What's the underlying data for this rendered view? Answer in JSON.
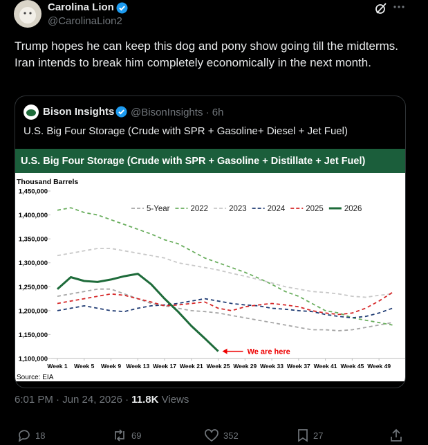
{
  "tweet": {
    "author": "Carolina Lion",
    "handle": "@CarolinaLion2",
    "text": "Trump hopes he can keep this dog and pony show going till the midterms. Iran intends to break him completely economically in the next month.",
    "timestamp": "6:01 PM · Jun 24, 2026 ·",
    "views": "11.8K",
    "views_label": "Views",
    "replies": 18,
    "reposts": 69,
    "likes": 352,
    "bookmarks": 27
  },
  "quote": {
    "author": "Bison Insights",
    "meta": "@BisonInsights · 6h",
    "text": "U.S. Big Four Storage (Crude with SPR + Gasoline+ Diesel + Jet Fuel)"
  },
  "chart_data": {
    "type": "line",
    "title": "U.S. Big Four Storage (Crude with SPR + Gasoline + Distillate + Jet Fuel)",
    "y_label": "Thousand Barrels",
    "source": "Source: EIA",
    "annotation": "We are here",
    "x": [
      1,
      3,
      5,
      7,
      9,
      11,
      13,
      15,
      17,
      19,
      21,
      23,
      25,
      27,
      29,
      31,
      33,
      35,
      37,
      39,
      41,
      43,
      45,
      47,
      49,
      51
    ],
    "xlim": [
      0,
      53
    ],
    "xticks": [
      {
        "value": 1,
        "label": "Week 1"
      },
      {
        "value": 5,
        "label": "Week 5"
      },
      {
        "value": 9,
        "label": "Week 9"
      },
      {
        "value": 13,
        "label": "Week 13"
      },
      {
        "value": 17,
        "label": "Week 17"
      },
      {
        "value": 21,
        "label": "Week 21"
      },
      {
        "value": 25,
        "label": "Week 25"
      },
      {
        "value": 29,
        "label": "Week 29"
      },
      {
        "value": 33,
        "label": "Week 33"
      },
      {
        "value": 37,
        "label": "Week 37"
      },
      {
        "value": 41,
        "label": "Week 41"
      },
      {
        "value": 45,
        "label": "Week 45"
      },
      {
        "value": 49,
        "label": "Week 49"
      }
    ],
    "ylim": [
      1100000,
      1450000
    ],
    "yticks": [
      {
        "value": 1100000,
        "label": "1,100,000"
      },
      {
        "value": 1150000,
        "label": "1,150,000"
      },
      {
        "value": 1200000,
        "label": "1,200,000"
      },
      {
        "value": 1250000,
        "label": "1,250,000"
      },
      {
        "value": 1300000,
        "label": "1,300,000"
      },
      {
        "value": 1350000,
        "label": "1,350,000"
      },
      {
        "value": 1400000,
        "label": "1,400,000"
      },
      {
        "value": 1450000,
        "label": "1,450,000"
      }
    ],
    "grid": false,
    "legend": "top-right",
    "series": [
      {
        "name": "5-Year",
        "color": "#a6a6a6",
        "style": "dashed",
        "values": [
          1230000,
          1235000,
          1240000,
          1245000,
          1245000,
          1235000,
          1225000,
          1215000,
          1210000,
          1205000,
          1200000,
          1198000,
          1195000,
          1190000,
          1185000,
          1180000,
          1175000,
          1170000,
          1165000,
          1160000,
          1160000,
          1158000,
          1160000,
          1165000,
          1170000,
          1175000
        ]
      },
      {
        "name": "2022",
        "color": "#6aae5e",
        "style": "dashed",
        "values": [
          1410000,
          1415000,
          1405000,
          1400000,
          1390000,
          1380000,
          1370000,
          1360000,
          1348000,
          1340000,
          1325000,
          1310000,
          1300000,
          1290000,
          1280000,
          1268000,
          1255000,
          1240000,
          1230000,
          1215000,
          1200000,
          1195000,
          1185000,
          1180000,
          1175000,
          1170000
        ]
      },
      {
        "name": "2023",
        "color": "#c8c8c8",
        "style": "dashed",
        "values": [
          1315000,
          1320000,
          1325000,
          1330000,
          1330000,
          1325000,
          1320000,
          1315000,
          1310000,
          1300000,
          1295000,
          1290000,
          1285000,
          1278000,
          1272000,
          1265000,
          1258000,
          1250000,
          1245000,
          1240000,
          1238000,
          1235000,
          1230000,
          1228000,
          1232000,
          1235000
        ]
      },
      {
        "name": "2024",
        "color": "#1f3b73",
        "style": "dashed",
        "values": [
          1200000,
          1205000,
          1210000,
          1205000,
          1200000,
          1198000,
          1205000,
          1210000,
          1212000,
          1215000,
          1220000,
          1225000,
          1220000,
          1215000,
          1212000,
          1210000,
          1205000,
          1203000,
          1200000,
          1198000,
          1192000,
          1188000,
          1185000,
          1188000,
          1195000,
          1205000
        ]
      },
      {
        "name": "2025",
        "color": "#d62728",
        "style": "dashed",
        "values": [
          1215000,
          1220000,
          1225000,
          1230000,
          1235000,
          1232000,
          1225000,
          1218000,
          1210000,
          1212000,
          1215000,
          1218000,
          1205000,
          1200000,
          1208000,
          1212000,
          1215000,
          1212000,
          1208000,
          1200000,
          1195000,
          1192000,
          1195000,
          1205000,
          1220000,
          1238000
        ]
      },
      {
        "name": "2026",
        "color": "#1e6b3a",
        "style": "solid",
        "values": [
          1245000,
          1270000,
          1262000,
          1260000,
          1265000,
          1272000,
          1277000,
          1255000,
          1225000,
          1198000,
          1168000,
          1142000,
          1115000,
          null,
          null,
          null,
          null,
          null,
          null,
          null,
          null,
          null,
          null,
          null,
          null,
          null
        ]
      }
    ]
  }
}
